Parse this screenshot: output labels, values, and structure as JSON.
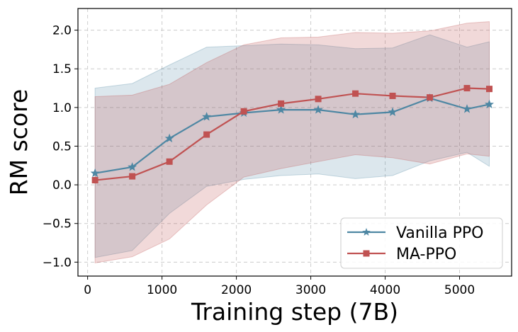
{
  "chart_data": {
    "type": "line",
    "title": "",
    "xlabel": "Training step (7B)",
    "ylabel": "RM score",
    "xlim": [
      -130,
      5700
    ],
    "ylim": [
      -1.18,
      2.28
    ],
    "xticks": [
      0,
      1000,
      2000,
      3000,
      4000,
      5000
    ],
    "xtick_labels": [
      "0",
      "1000",
      "2000",
      "3000",
      "4000",
      "5000"
    ],
    "yticks": [
      -1.0,
      -0.5,
      0.0,
      0.5,
      1.0,
      1.5,
      2.0
    ],
    "ytick_labels": [
      "−1.0",
      "−0.5",
      "0.0",
      "0.5",
      "1.0",
      "1.5",
      "2.0"
    ],
    "grid": true,
    "legend_position": "bottom-right",
    "x": [
      100,
      600,
      1100,
      1600,
      2100,
      2600,
      3100,
      3600,
      4100,
      4600,
      5100,
      5400
    ],
    "series": [
      {
        "name": "Vanilla PPO",
        "color": "#4e87a3",
        "marker": "star",
        "values": [
          0.15,
          0.23,
          0.6,
          0.88,
          0.93,
          0.97,
          0.97,
          0.91,
          0.94,
          1.12,
          0.98,
          1.04
        ],
        "upper": [
          1.25,
          1.31,
          1.55,
          1.78,
          1.8,
          1.82,
          1.81,
          1.76,
          1.77,
          1.94,
          1.78,
          1.85
        ],
        "lower": [
          -0.94,
          -0.85,
          -0.37,
          -0.02,
          0.07,
          0.12,
          0.14,
          0.08,
          0.12,
          0.31,
          0.42,
          0.24
        ]
      },
      {
        "name": "MA-PPO",
        "color": "#c05252",
        "marker": "square",
        "values": [
          0.06,
          0.11,
          0.3,
          0.65,
          0.95,
          1.05,
          1.11,
          1.18,
          1.15,
          1.13,
          1.25,
          1.24
        ],
        "upper": [
          1.14,
          1.16,
          1.3,
          1.58,
          1.81,
          1.9,
          1.91,
          1.97,
          1.96,
          1.99,
          2.09,
          2.11
        ],
        "lower": [
          -1.01,
          -0.93,
          -0.7,
          -0.26,
          0.1,
          0.21,
          0.3,
          0.39,
          0.35,
          0.27,
          0.4,
          0.37
        ]
      }
    ]
  }
}
